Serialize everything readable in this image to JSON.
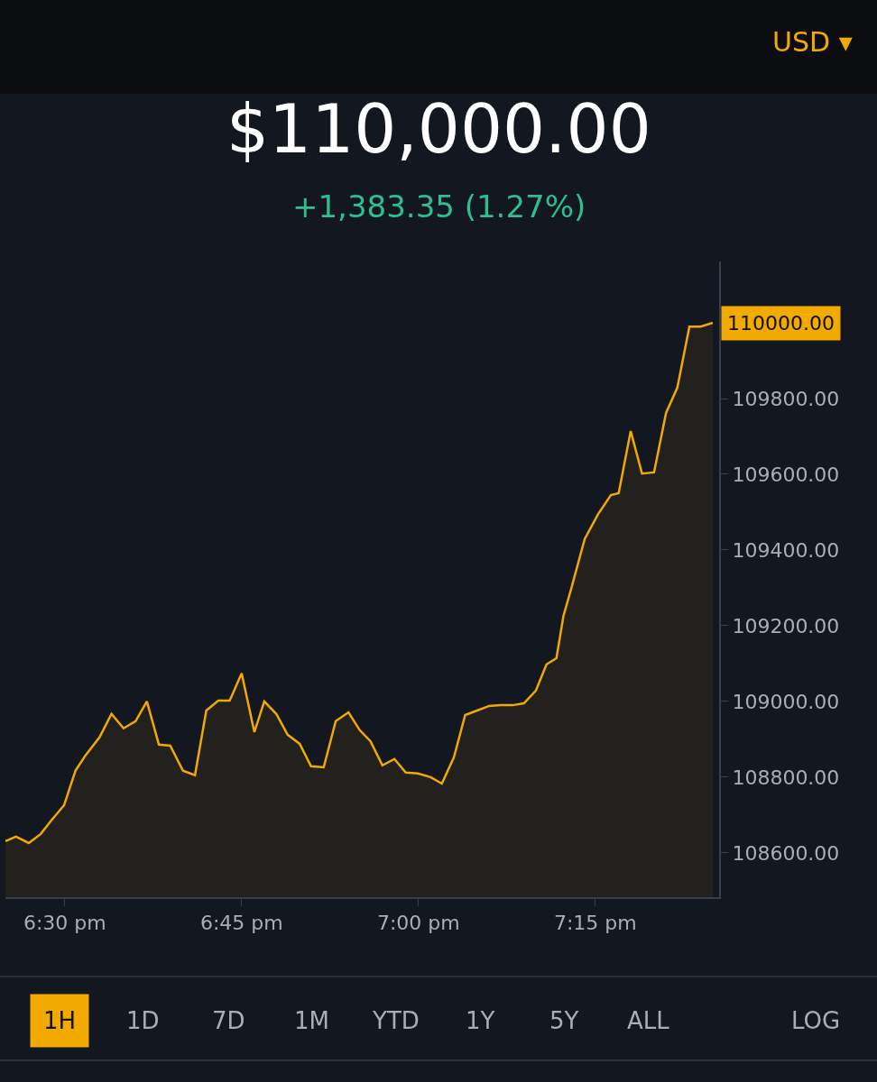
{
  "chart_data": {
    "type": "area",
    "title": "$110,000.00",
    "subtitle": "+1,383.35 (1.27%)",
    "x": [
      18.416,
      18.431,
      18.449,
      18.466,
      18.481,
      18.499,
      18.515,
      18.529,
      18.549,
      18.566,
      18.583,
      18.6,
      18.616,
      18.633,
      18.649,
      18.667,
      18.684,
      18.7,
      18.717,
      18.733,
      18.75,
      18.768,
      18.782,
      18.799,
      18.815,
      18.832,
      18.848,
      18.866,
      18.883,
      18.901,
      18.917,
      18.932,
      18.949,
      18.966,
      18.982,
      18.999,
      19.017,
      19.033,
      19.05,
      19.066,
      19.083,
      19.1,
      19.116,
      19.133,
      19.149,
      19.166,
      19.181,
      19.195,
      19.205,
      19.217,
      19.235,
      19.254,
      19.272,
      19.283,
      19.3,
      19.316,
      19.333,
      19.35,
      19.366,
      19.383,
      19.399,
      19.416
    ],
    "series": [
      {
        "color": "#f2a900",
        "values": [
          108631,
          108643,
          108626,
          108650,
          108686,
          108726,
          108817,
          108857,
          108905,
          108967,
          108929,
          108948,
          109000,
          108886,
          108883,
          108817,
          108805,
          108976,
          109002,
          109002,
          109074,
          108919,
          109000,
          108967,
          108912,
          108888,
          108829,
          108826,
          108948,
          108971,
          108924,
          108895,
          108831,
          108848,
          108812,
          108810,
          108800,
          108783,
          108852,
          108964,
          108976,
          108988,
          108990,
          108990,
          108995,
          109029,
          109098,
          109114,
          109226,
          109305,
          109429,
          109495,
          109545,
          109550,
          109714,
          109602,
          109605,
          109762,
          109829,
          109990,
          109990,
          110000
        ]
      }
    ],
    "xlim": [
      18.416,
      19.425
    ],
    "xticks": [
      {
        "value": 18.5,
        "label": "6:30 pm"
      },
      {
        "value": 18.75,
        "label": "6:45 pm"
      },
      {
        "value": 19.0,
        "label": "7:00 pm"
      },
      {
        "value": 19.25,
        "label": "7:15 pm"
      }
    ],
    "ylim": [
      108483,
      110162
    ],
    "yticks": [
      {
        "value": 108600,
        "label": "108600.00"
      },
      {
        "value": 108800,
        "label": "108800.00"
      },
      {
        "value": 109000,
        "label": "109000.00"
      },
      {
        "value": 109200,
        "label": "109200.00"
      },
      {
        "value": 109400,
        "label": "109400.00"
      },
      {
        "value": 109600,
        "label": "109600.00"
      },
      {
        "value": 109800,
        "label": "109800.00"
      },
      {
        "value": 110000,
        "label": "110000.00"
      }
    ],
    "annotations": [
      "USD ▾",
      "1H",
      "1D",
      "7D",
      "1M",
      "YTD",
      "1Y",
      "5Y",
      "ALL",
      "LOG"
    ],
    "grid": false,
    "marker": "none",
    "line_style": "solid"
  }
}
